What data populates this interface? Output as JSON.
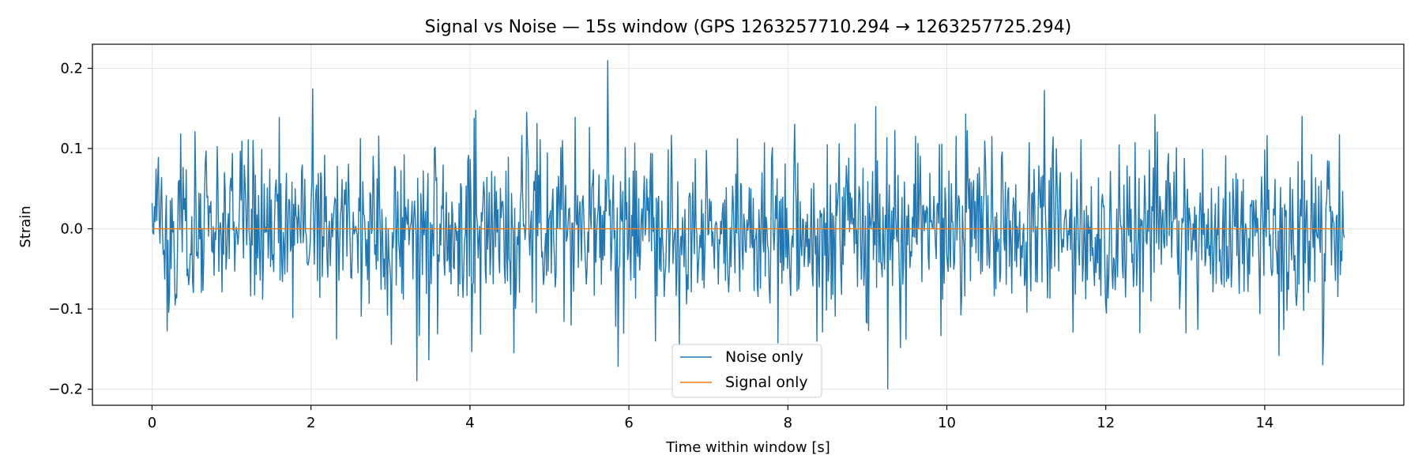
{
  "chart_data": {
    "type": "line",
    "title": "Signal vs Noise — 15s window (GPS 1263257710.294 → 1263257725.294)",
    "xlabel": "Time within window [s]",
    "ylabel": "Strain",
    "xlim": [
      -0.75,
      15.75
    ],
    "ylim": [
      -0.22,
      0.23
    ],
    "xticks": [
      0,
      2,
      4,
      6,
      8,
      10,
      12,
      14
    ],
    "yticks": [
      -0.2,
      -0.1,
      0.0,
      0.1,
      0.2
    ],
    "ytick_labels": [
      "−0.2",
      "−0.1",
      "0.0",
      "0.1",
      "0.2"
    ],
    "grid": true,
    "legend_position": "lower center",
    "series": [
      {
        "name": "Noise only",
        "color": "#1f77b4",
        "x_range": [
          0,
          15
        ],
        "num_points": 1500,
        "approx_std": 0.055,
        "peaks": [
          {
            "x": 5.73,
            "y": 0.21
          },
          {
            "x": 9.26,
            "y": -0.2
          },
          {
            "x": 3.33,
            "y": -0.19
          },
          {
            "x": 2.02,
            "y": 0.175
          },
          {
            "x": 11.23,
            "y": 0.173
          },
          {
            "x": 14.73,
            "y": -0.17
          }
        ]
      },
      {
        "name": "Signal only",
        "color": "#ff7f0e",
        "x": [
          0,
          15
        ],
        "y": [
          0.0,
          0.0
        ]
      }
    ]
  }
}
